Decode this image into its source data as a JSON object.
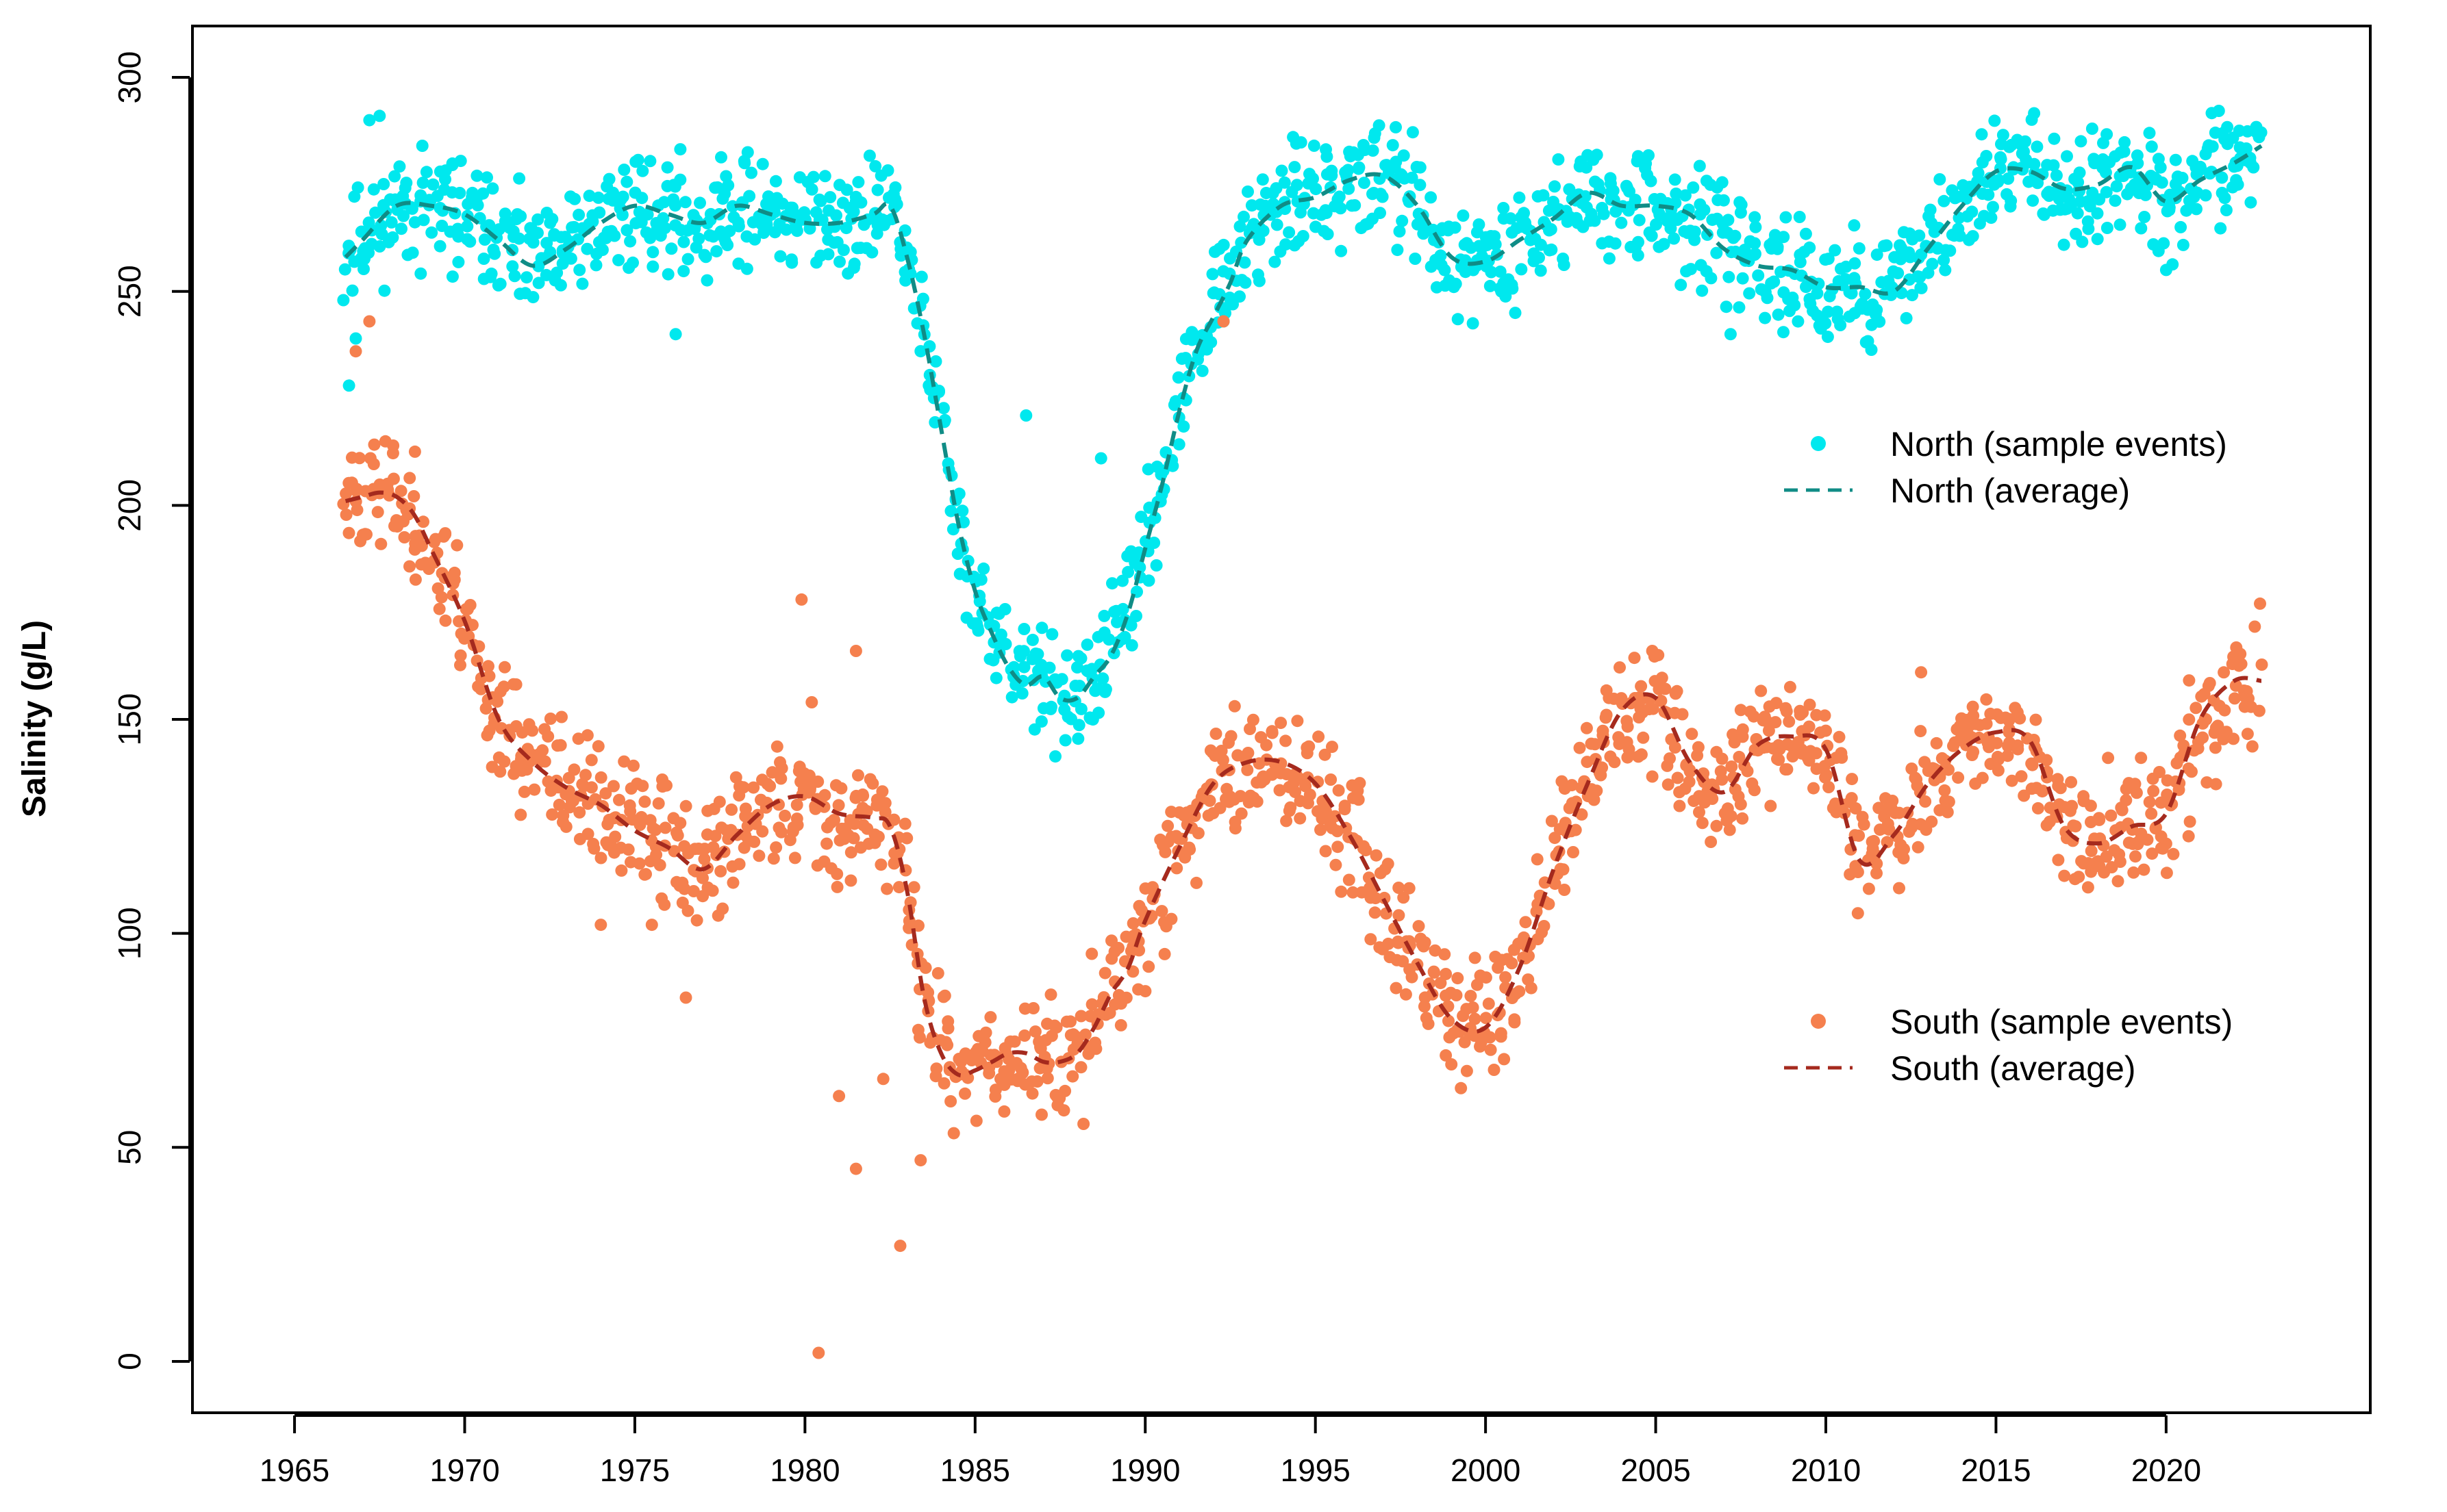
{
  "chart_data": {
    "type": "scatter",
    "title": "",
    "xlabel": "",
    "ylabel": "Salinity (g/L)",
    "xlim": [
      1962,
      2026
    ],
    "ylim": [
      -12,
      312
    ],
    "x_ticks": [
      1965,
      1970,
      1975,
      1980,
      1985,
      1990,
      1995,
      2000,
      2005,
      2010,
      2015,
      2020
    ],
    "x_tick_labels": [
      "1965",
      "1970",
      "1975",
      "1980",
      "1985",
      "1990",
      "1995",
      "2000",
      "2005",
      "2010",
      "2015",
      "2020"
    ],
    "y_ticks": [
      0,
      50,
      100,
      150,
      200,
      250,
      300
    ],
    "y_tick_labels": [
      "0",
      "50",
      "100",
      "150",
      "200",
      "250",
      "300"
    ],
    "grid": false,
    "legend_position": "right",
    "colors": {
      "north_points": "#00E8EE",
      "north_line": "#108C86",
      "south_points": "#F5804E",
      "south_line": "#A52A1E"
    },
    "series": [
      {
        "name": "North (sample events)",
        "kind": "points",
        "color_key": "north_points",
        "seed": 11,
        "noise": 9,
        "density": 6,
        "curve_x": [
          1966.5,
          1967,
          1968,
          1969,
          1970,
          1971,
          1972,
          1973,
          1974,
          1975,
          1976,
          1977,
          1978,
          1979,
          1980,
          1981,
          1982,
          1982.5,
          1983,
          1983.5,
          1984,
          1984.5,
          1985,
          1985.5,
          1986,
          1986.5,
          1987,
          1987.5,
          1988,
          1988.5,
          1989,
          1989.5,
          1990,
          1990.5,
          1991,
          1991.5,
          1992,
          1992.5,
          1993,
          1994,
          1995,
          1996,
          1997,
          1998,
          1999,
          2000,
          2001,
          2002,
          2003,
          2004,
          2005,
          2006,
          2007,
          2008,
          2009,
          2010,
          2011,
          2012,
          2013,
          2014,
          2015,
          2016,
          2017,
          2018,
          2019,
          2020,
          2021,
          2022,
          2022.8
        ],
        "curve_y": [
          258,
          262,
          270,
          270,
          268,
          262,
          256,
          260,
          266,
          270,
          268,
          266,
          270,
          268,
          266,
          266,
          268,
          270,
          258,
          240,
          218,
          196,
          180,
          170,
          162,
          158,
          160,
          155,
          155,
          160,
          165,
          175,
          190,
          205,
          222,
          236,
          244,
          252,
          262,
          270,
          272,
          276,
          277,
          270,
          258,
          257,
          262,
          267,
          273,
          270,
          270,
          268,
          260,
          256,
          255,
          251,
          251,
          250,
          260,
          270,
          278,
          278,
          274,
          275,
          279,
          271,
          276,
          280,
          284
        ],
        "outliers": [
          [
            1966.6,
            228
          ],
          [
            1966.8,
            239
          ],
          [
            1976.2,
            240
          ],
          [
            1986.5,
            221
          ],
          [
            1988.7,
            211
          ],
          [
            1992.3,
            243
          ],
          [
            2007.2,
            240
          ],
          [
            2020.0,
            255
          ],
          [
            1967.2,
            290
          ],
          [
            1967.5,
            291
          ]
        ]
      },
      {
        "name": "North (average)",
        "kind": "line",
        "color_key": "north_line",
        "x": [
          1966.5,
          1967,
          1968,
          1969,
          1970,
          1971,
          1972,
          1973,
          1974,
          1975,
          1976,
          1977,
          1978,
          1979,
          1980,
          1981,
          1982,
          1982.5,
          1983,
          1983.5,
          1984,
          1984.5,
          1985,
          1985.5,
          1986,
          1986.5,
          1987,
          1987.5,
          1988,
          1988.5,
          1989,
          1989.5,
          1990,
          1990.5,
          1991,
          1991.5,
          1992,
          1992.5,
          1993,
          1994,
          1995,
          1996,
          1997,
          1998,
          1999,
          2000,
          2001,
          2002,
          2003,
          2004,
          2005,
          2006,
          2007,
          2008,
          2009,
          2010,
          2011,
          2012,
          2013,
          2014,
          2015,
          2016,
          2017,
          2018,
          2019,
          2020,
          2021,
          2022,
          2022.8
        ],
        "y": [
          258,
          262,
          270,
          270,
          268,
          262,
          256,
          260,
          266,
          270,
          268,
          266,
          270,
          268,
          266,
          266,
          268,
          270,
          258,
          240,
          218,
          196,
          180,
          170,
          162,
          158,
          160,
          155,
          155,
          160,
          165,
          175,
          190,
          205,
          222,
          236,
          244,
          252,
          262,
          270,
          272,
          276,
          277,
          270,
          258,
          257,
          262,
          267,
          273,
          270,
          270,
          268,
          260,
          256,
          255,
          251,
          251,
          250,
          260,
          270,
          278,
          278,
          274,
          275,
          279,
          271,
          276,
          280,
          284
        ]
      },
      {
        "name": "South (sample events)",
        "kind": "points",
        "color_key": "south_points",
        "seed": 23,
        "noise": 10,
        "density": 6,
        "curve_x": [
          1966.5,
          1967,
          1967.5,
          1968,
          1968.5,
          1969,
          1970,
          1971,
          1972,
          1973,
          1974,
          1975,
          1976,
          1977,
          1978,
          1979,
          1980,
          1981,
          1982,
          1982.5,
          1983,
          1983.5,
          1984,
          1984.5,
          1985,
          1985.5,
          1986,
          1986.5,
          1987,
          1987.5,
          1988,
          1988.5,
          1989,
          1989.5,
          1990,
          1991,
          1992,
          1993,
          1994,
          1995,
          1996,
          1997,
          1998,
          1999,
          2000,
          2001,
          2002,
          2003,
          2004,
          2005,
          2006,
          2007,
          2008,
          2009,
          2010,
          2011,
          2012,
          2013,
          2014,
          2015,
          2016,
          2017,
          2018,
          2019,
          2020,
          2021,
          2022,
          2022.8
        ],
        "curve_y": [
          201,
          202,
          203,
          202,
          198,
          190,
          173,
          150,
          140,
          134,
          130,
          124,
          120,
          115,
          123,
          130,
          132,
          128,
          127,
          125,
          110,
          85,
          72,
          67,
          68,
          70,
          72,
          72,
          70,
          70,
          72,
          78,
          86,
          92,
          103,
          120,
          135,
          140,
          140,
          135,
          123,
          108,
          93,
          80,
          78,
          92,
          115,
          135,
          152,
          155,
          140,
          133,
          144,
          146,
          143,
          117,
          123,
          135,
          143,
          147,
          145,
          125,
          121,
          125,
          128,
          150,
          159,
          159
        ],
        "outliers": [
          [
            1979.9,
            178
          ],
          [
            1981.5,
            166
          ],
          [
            1980.4,
            2
          ],
          [
            1981.5,
            45
          ],
          [
            1981.0,
            62
          ],
          [
            1982.3,
            66
          ],
          [
            1982.8,
            27
          ],
          [
            1983.4,
            47
          ],
          [
            1976.5,
            85
          ],
          [
            1975.5,
            102
          ],
          [
            1974.0,
            102
          ],
          [
            1966.8,
            236
          ],
          [
            1967.2,
            243
          ],
          [
            1992.3,
            243
          ],
          [
            1980.2,
            154
          ],
          [
            2012.8,
            161
          ],
          [
            2004.9,
            166
          ]
        ]
      },
      {
        "name": "South (average)",
        "kind": "line",
        "color_key": "south_line",
        "x": [
          1966.5,
          1967,
          1967.5,
          1968,
          1968.5,
          1969,
          1970,
          1971,
          1972,
          1973,
          1974,
          1975,
          1976,
          1977,
          1978,
          1979,
          1980,
          1981,
          1982,
          1982.5,
          1983,
          1983.5,
          1984,
          1984.5,
          1985,
          1985.5,
          1986,
          1986.5,
          1987,
          1987.5,
          1988,
          1988.5,
          1989,
          1989.5,
          1990,
          1991,
          1992,
          1993,
          1994,
          1995,
          1996,
          1997,
          1998,
          1999,
          2000,
          2001,
          2002,
          2003,
          2004,
          2005,
          2006,
          2007,
          2008,
          2009,
          2010,
          2011,
          2012,
          2013,
          2014,
          2015,
          2016,
          2017,
          2018,
          2019,
          2020,
          2021,
          2022,
          2022.8
        ],
        "y": [
          201,
          202,
          203,
          202,
          198,
          190,
          173,
          150,
          140,
          134,
          130,
          124,
          120,
          115,
          123,
          130,
          132,
          128,
          127,
          125,
          110,
          85,
          72,
          67,
          68,
          70,
          72,
          72,
          70,
          70,
          72,
          78,
          86,
          92,
          103,
          120,
          135,
          140,
          140,
          135,
          123,
          108,
          93,
          80,
          78,
          92,
          115,
          135,
          152,
          155,
          140,
          133,
          144,
          146,
          143,
          117,
          123,
          135,
          143,
          147,
          145,
          125,
          121,
          125,
          128,
          150,
          159,
          159
        ]
      }
    ],
    "legend": {
      "north": [
        {
          "label": "North (sample events)",
          "symbol": "dot",
          "color_key": "north_points"
        },
        {
          "label": "North (average)",
          "symbol": "dash",
          "color_key": "north_line"
        }
      ],
      "south": [
        {
          "label": "South (sample events)",
          "symbol": "dot",
          "color_key": "south_points"
        },
        {
          "label": "South (average)",
          "symbol": "dash",
          "color_key": "south_line"
        }
      ]
    }
  }
}
